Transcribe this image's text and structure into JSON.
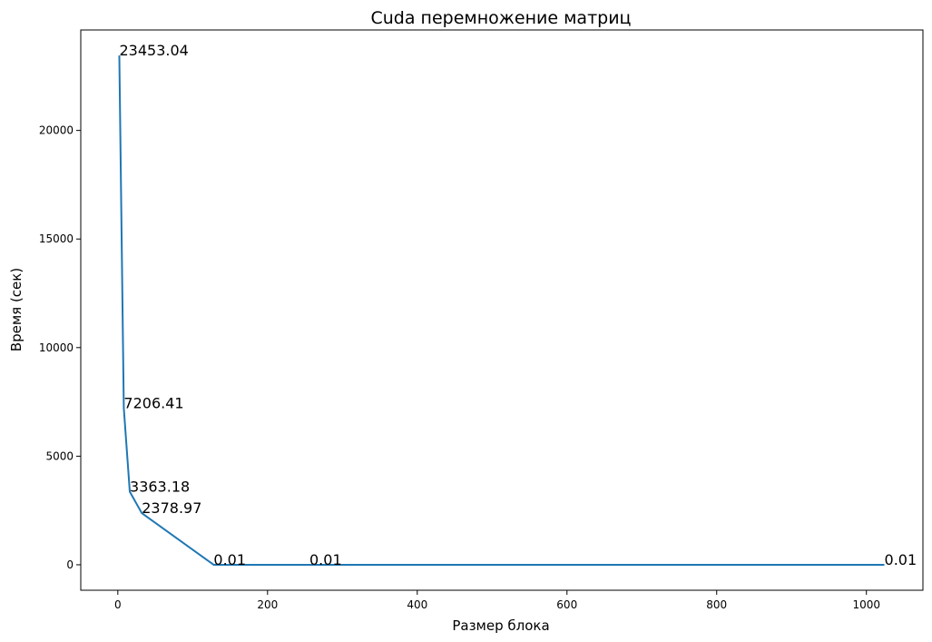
{
  "chart_data": {
    "type": "line",
    "title": "Cuda перемножение матриц",
    "xlabel": "Размер блока",
    "ylabel": "Время (сек)",
    "xlim": [
      -49.5,
      1075.5
    ],
    "ylim": [
      -1172.65,
      24625.69
    ],
    "x_ticks": [
      0,
      200,
      400,
      600,
      800,
      1000
    ],
    "y_ticks": [
      0,
      5000,
      10000,
      15000,
      20000
    ],
    "grid": false,
    "legend": "none",
    "line_color": "#1f77b4",
    "series": [
      {
        "x": [
          2,
          8,
          16,
          32,
          128,
          256,
          1024
        ],
        "y": [
          23453.04,
          7206.41,
          3363.18,
          2378.97,
          0.01,
          0.01,
          0.01
        ]
      }
    ],
    "point_labels": [
      "23453.04",
      "7206.41",
      "3363.18",
      "2378.97",
      "0.01",
      "0.01",
      "0.01"
    ]
  }
}
